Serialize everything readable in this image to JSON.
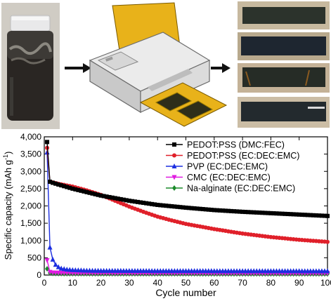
{
  "colors": {
    "pedot_dmc": "#000000",
    "pedot_ec": "#e0202a",
    "pvp": "#1c2ee0",
    "cmc": "#e01ae0",
    "alginate": "#1a8a2a"
  },
  "illustration": {
    "left_photo": "vial-of-black-slurry",
    "printer": "printer-icon",
    "right_photos": [
      "printed-electrode-strip",
      "printed-electrode-strip",
      "folded-printed-electrode-strip",
      "printed-electrode-strip"
    ]
  },
  "chart_data": {
    "type": "line",
    "xlabel": "Cycle number",
    "ylabel": "Specific capacity (mAh g",
    "ylabel_sup": "-1",
    "ylabel_close": ")",
    "xlim": [
      0,
      100
    ],
    "ylim": [
      0,
      4000
    ],
    "xticks": [
      0,
      10,
      20,
      30,
      40,
      50,
      60,
      70,
      80,
      90,
      100
    ],
    "yticks": [
      0,
      500,
      1000,
      1500,
      2000,
      2500,
      3000,
      3500,
      4000
    ],
    "ytick_labels": [
      "0",
      "500",
      "1,000",
      "1,500",
      "2,000",
      "2,500",
      "3,000",
      "3,500",
      "4,000"
    ],
    "legend_position": "top-right",
    "series": [
      {
        "name": "PEDOT:PSS (DMC:FEC)",
        "marker": "square",
        "color_key": "pedot_dmc",
        "points": [
          [
            1,
            3850
          ],
          [
            2,
            2700
          ],
          [
            3,
            2670
          ],
          [
            5,
            2620
          ],
          [
            10,
            2500
          ],
          [
            15,
            2400
          ],
          [
            20,
            2300
          ],
          [
            30,
            2150
          ],
          [
            40,
            2030
          ],
          [
            50,
            1950
          ],
          [
            60,
            1880
          ],
          [
            70,
            1830
          ],
          [
            80,
            1790
          ],
          [
            90,
            1750
          ],
          [
            100,
            1710
          ]
        ]
      },
      {
        "name": "PEDOT:PSS (EC:DEC:EMC)",
        "marker": "circle",
        "color_key": "pedot_ec",
        "points": [
          [
            1,
            3680
          ],
          [
            2,
            2700
          ],
          [
            3,
            2680
          ],
          [
            5,
            2640
          ],
          [
            10,
            2560
          ],
          [
            15,
            2450
          ],
          [
            20,
            2320
          ],
          [
            25,
            2150
          ],
          [
            30,
            1980
          ],
          [
            35,
            1830
          ],
          [
            40,
            1690
          ],
          [
            45,
            1580
          ],
          [
            50,
            1480
          ],
          [
            60,
            1330
          ],
          [
            70,
            1200
          ],
          [
            80,
            1100
          ],
          [
            90,
            1020
          ],
          [
            100,
            960
          ]
        ]
      },
      {
        "name": "PVP (EC:DEC:EMC)",
        "marker": "triangle",
        "color_key": "pvp",
        "points": [
          [
            1,
            3550
          ],
          [
            2,
            800
          ],
          [
            3,
            450
          ],
          [
            4,
            300
          ],
          [
            5,
            230
          ],
          [
            6,
            190
          ],
          [
            8,
            160
          ],
          [
            10,
            145
          ],
          [
            15,
            130
          ],
          [
            20,
            125
          ],
          [
            40,
            120
          ],
          [
            60,
            118
          ],
          [
            80,
            116
          ],
          [
            100,
            115
          ]
        ]
      },
      {
        "name": "CMC (EC:DEC:EMC)",
        "marker": "triangle-down",
        "color_key": "cmc",
        "points": [
          [
            1,
            430
          ],
          [
            2,
            90
          ],
          [
            3,
            70
          ],
          [
            5,
            65
          ],
          [
            10,
            62
          ],
          [
            20,
            60
          ],
          [
            40,
            58
          ],
          [
            60,
            57
          ],
          [
            80,
            56
          ],
          [
            100,
            55
          ]
        ]
      },
      {
        "name": "Na-alginate (EC:DEC:EMC)",
        "marker": "diamond",
        "color_key": "alginate",
        "points": [
          [
            1,
            180
          ],
          [
            2,
            60
          ],
          [
            3,
            45
          ],
          [
            5,
            40
          ],
          [
            10,
            38
          ],
          [
            20,
            36
          ],
          [
            40,
            35
          ],
          [
            60,
            34
          ],
          [
            80,
            33
          ],
          [
            100,
            32
          ]
        ]
      }
    ]
  }
}
